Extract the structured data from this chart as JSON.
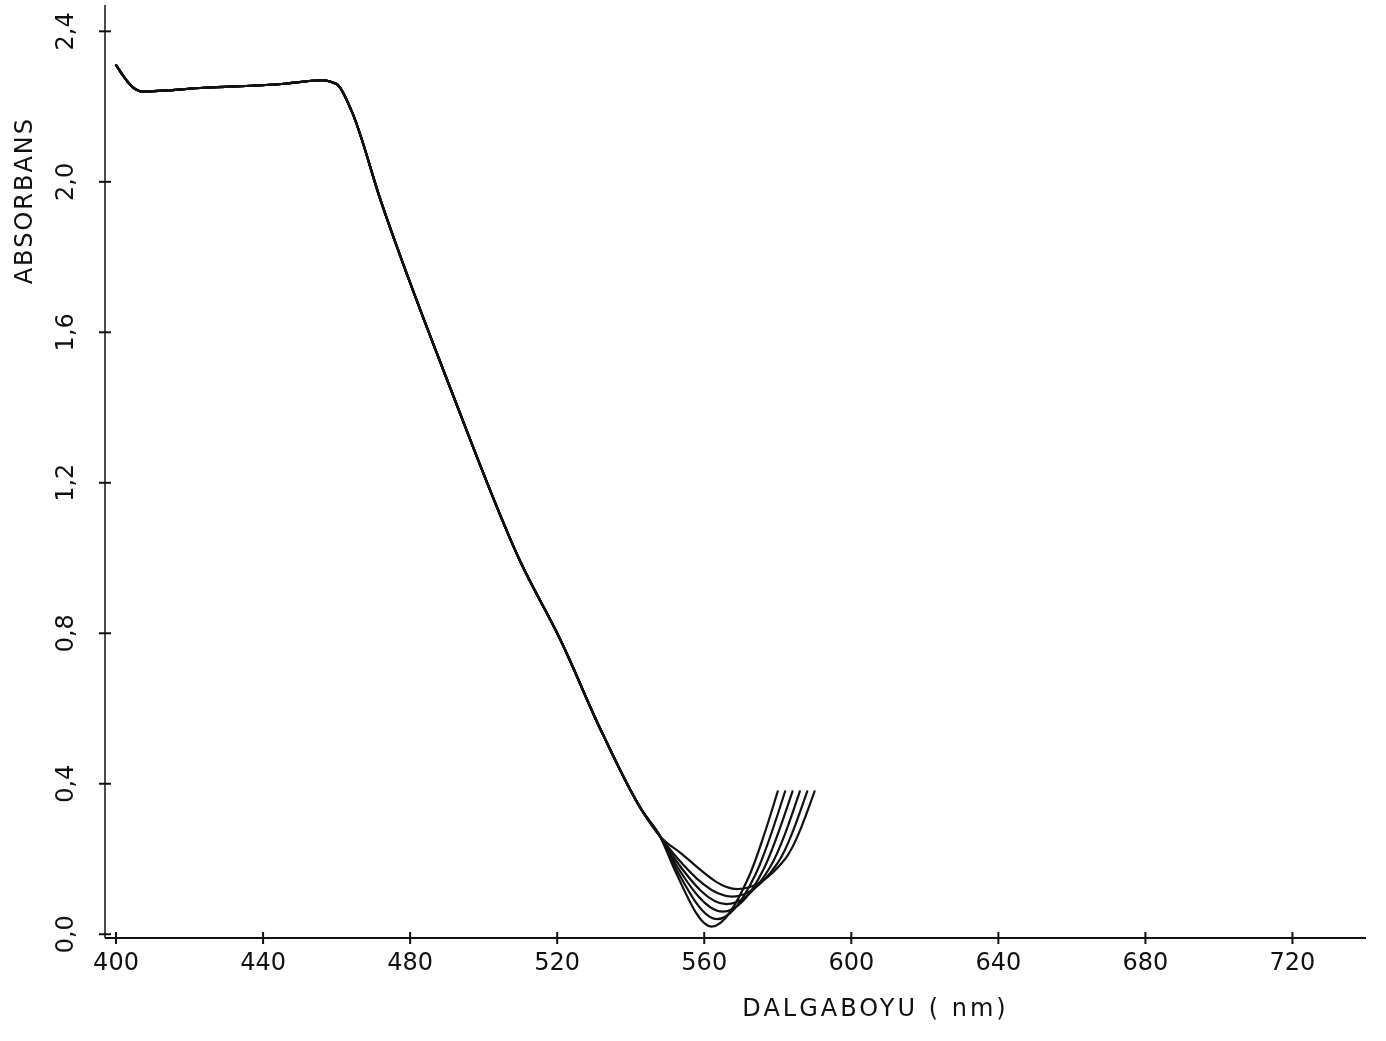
{
  "chart_data": {
    "type": "line",
    "xlabel": "DALGABOYU ( nm)",
    "ylabel": "ABSORBANS",
    "xlim": [
      397,
      740
    ],
    "ylim": [
      -0.01,
      2.47
    ],
    "xticks": [
      400,
      440,
      480,
      520,
      560,
      600,
      640,
      680,
      720
    ],
    "yticks": [
      {
        "value": 0,
        "label": "0,0"
      },
      {
        "value": 0.4,
        "label": "0,4"
      },
      {
        "value": 0.8,
        "label": "0,8"
      },
      {
        "value": 1.2,
        "label": "1,2"
      },
      {
        "value": 1.6,
        "label": "1,6"
      },
      {
        "value": 2.0,
        "label": "2,0"
      },
      {
        "value": 2.4,
        "label": "2,4"
      }
    ],
    "grid": false,
    "marker": "none",
    "line_style": "solid",
    "series": [
      {
        "color": "#111111",
        "x": [
          400,
          407,
          424,
          445,
          456,
          460,
          464,
          472,
          491,
          510,
          521,
          532,
          543,
          548,
          552,
          562,
          572,
          580
        ],
        "values": [
          2.31,
          2.24,
          2.25,
          2.26,
          2.27,
          2.26,
          2.19,
          1.95,
          1.45,
          0.99,
          0.78,
          0.54,
          0.33,
          0.26,
          0.17,
          0.02,
          0.15,
          0.38
        ]
      },
      {
        "color": "#111111",
        "x": [
          400,
          407,
          424,
          445,
          456,
          460,
          464,
          472,
          491,
          510,
          521,
          532,
          543,
          548,
          552,
          563.5,
          574,
          582
        ],
        "values": [
          2.31,
          2.24,
          2.25,
          2.26,
          2.27,
          2.26,
          2.19,
          1.95,
          1.45,
          0.99,
          0.78,
          0.54,
          0.33,
          0.26,
          0.18,
          0.04,
          0.16,
          0.38
        ]
      },
      {
        "color": "#111111",
        "x": [
          400,
          407,
          424,
          445,
          456,
          460,
          464,
          472,
          491,
          510,
          521,
          532,
          543,
          548,
          552,
          565,
          576,
          584
        ],
        "values": [
          2.31,
          2.24,
          2.25,
          2.26,
          2.27,
          2.26,
          2.19,
          1.95,
          1.45,
          0.99,
          0.78,
          0.54,
          0.33,
          0.26,
          0.19,
          0.06,
          0.17,
          0.38
        ]
      },
      {
        "color": "#111111",
        "x": [
          400,
          407,
          424,
          445,
          456,
          460,
          464,
          472,
          491,
          510,
          521,
          532,
          543,
          548,
          552,
          566,
          578,
          586
        ],
        "values": [
          2.31,
          2.24,
          2.25,
          2.26,
          2.27,
          2.26,
          2.19,
          1.95,
          1.45,
          0.99,
          0.78,
          0.54,
          0.33,
          0.26,
          0.2,
          0.08,
          0.18,
          0.38
        ]
      },
      {
        "color": "#111111",
        "x": [
          400,
          407,
          424,
          445,
          456,
          460,
          464,
          472,
          491,
          510,
          521,
          532,
          543,
          548,
          552,
          567.5,
          580,
          588
        ],
        "values": [
          2.31,
          2.24,
          2.25,
          2.26,
          2.27,
          2.26,
          2.19,
          1.95,
          1.45,
          0.99,
          0.78,
          0.54,
          0.33,
          0.26,
          0.21,
          0.1,
          0.19,
          0.38
        ]
      },
      {
        "color": "#111111",
        "x": [
          400,
          407,
          424,
          445,
          456,
          460,
          464,
          472,
          491,
          510,
          521,
          532,
          543,
          548,
          553,
          569,
          582,
          590
        ],
        "values": [
          2.31,
          2.24,
          2.25,
          2.26,
          2.27,
          2.26,
          2.19,
          1.95,
          1.45,
          0.99,
          0.78,
          0.54,
          0.33,
          0.26,
          0.22,
          0.12,
          0.2,
          0.38
        ]
      }
    ]
  }
}
